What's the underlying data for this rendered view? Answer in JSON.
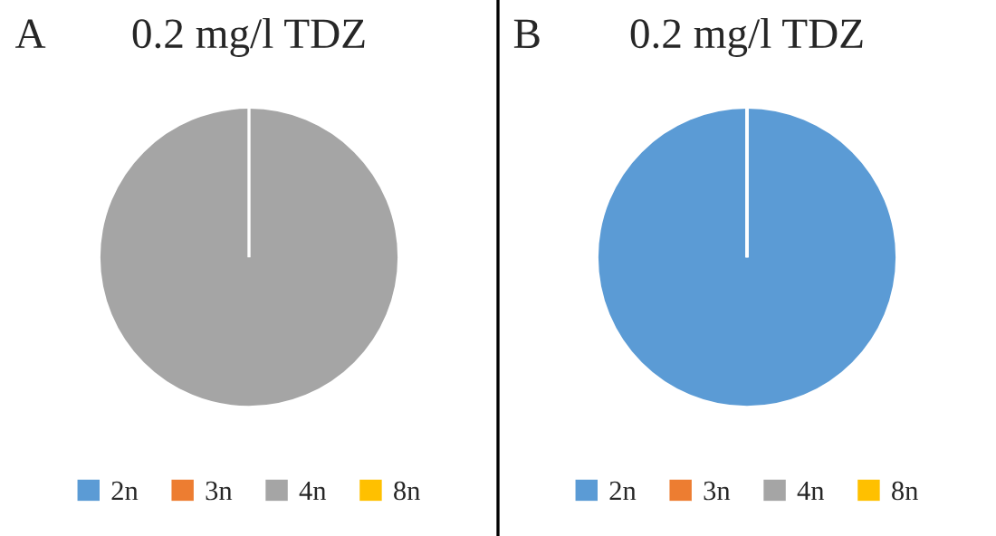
{
  "chart_data": [
    {
      "type": "pie",
      "title": "0.2 mg/l TDZ",
      "annotations": [
        "A"
      ],
      "categories": [
        "2n",
        "3n",
        "4n",
        "8n"
      ],
      "values": [
        0,
        0,
        100,
        0
      ],
      "colors": [
        "#5b9bd5",
        "#ed7d31",
        "#a5a5a5",
        "#ffc000"
      ],
      "legend": "bottom"
    },
    {
      "type": "pie",
      "title": "0.2 mg/l TDZ",
      "annotations": [
        "B"
      ],
      "categories": [
        "2n",
        "3n",
        "4n",
        "8n"
      ],
      "values": [
        100,
        0,
        0,
        0
      ],
      "colors": [
        "#5b9bd5",
        "#ed7d31",
        "#a5a5a5",
        "#ffc000"
      ],
      "legend": "bottom"
    }
  ]
}
